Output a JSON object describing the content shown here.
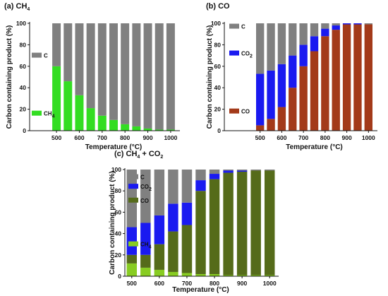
{
  "chart_data": [
    {
      "id": "a",
      "type": "bar",
      "stacked": true,
      "title": "(a) CH",
      "title_sub": "4",
      "xlabel": "Temperature (°C)",
      "ylabel": "Carbon containing product (%)",
      "ylim": [
        0,
        100
      ],
      "yticks": [
        0,
        20,
        40,
        60,
        80,
        100
      ],
      "categories": [
        "500",
        "550",
        "600",
        "650",
        "700",
        "750",
        "800",
        "850",
        "900",
        "950",
        "1000"
      ],
      "tick_labels": [
        "500",
        "600",
        "700",
        "800",
        "900",
        "1000"
      ],
      "series": [
        {
          "name": "CH",
          "name_sub": "4",
          "color": "#33dd22",
          "values": [
            60,
            46,
            33,
            21,
            14,
            10,
            6,
            4,
            2,
            1,
            1
          ]
        },
        {
          "name": "C",
          "name_sub": "",
          "color": "#808080",
          "values": [
            40,
            54,
            67,
            79,
            86,
            90,
            94,
            96,
            98,
            99,
            99
          ]
        }
      ]
    },
    {
      "id": "b",
      "type": "bar",
      "stacked": true,
      "title": "(b) CO",
      "title_sub": "",
      "xlabel": "Temperature (°C)",
      "ylabel": "Carbon containing product (%)",
      "ylim": [
        0,
        100
      ],
      "yticks": [
        0,
        20,
        40,
        60,
        80,
        100
      ],
      "categories": [
        "500",
        "550",
        "600",
        "650",
        "700",
        "750",
        "800",
        "850",
        "900",
        "950",
        "1000"
      ],
      "tick_labels": [
        "500",
        "600",
        "700",
        "800",
        "900",
        "1000"
      ],
      "series": [
        {
          "name": "CO",
          "name_sub": "",
          "color": "#a33a1a",
          "values": [
            5,
            11,
            22,
            40,
            60,
            74,
            88,
            94,
            99,
            99,
            99
          ]
        },
        {
          "name": "CO",
          "name_sub": "2",
          "color": "#1a1af0",
          "values": [
            48,
            45,
            40,
            30,
            20,
            14,
            7,
            4,
            1,
            1,
            0
          ]
        },
        {
          "name": "C",
          "name_sub": "",
          "color": "#808080",
          "values": [
            47,
            44,
            38,
            30,
            20,
            12,
            5,
            2,
            0,
            0,
            1
          ]
        }
      ]
    },
    {
      "id": "c",
      "type": "bar",
      "stacked": true,
      "title": "(c) CH",
      "title_sub": "4",
      "title_tail": " + CO",
      "title_tail_sub": "2",
      "xlabel": "Temperature (°C)",
      "ylabel": "Carbon containing product (%)",
      "ylim": [
        0,
        100
      ],
      "yticks": [
        0,
        20,
        40,
        60,
        80,
        100
      ],
      "categories": [
        "500",
        "550",
        "600",
        "650",
        "700",
        "750",
        "800",
        "850",
        "900",
        "950",
        "1000"
      ],
      "tick_labels": [
        "500",
        "600",
        "700",
        "800",
        "900",
        "1000"
      ],
      "series": [
        {
          "name": "CH",
          "name_sub": "4",
          "color": "#88cc22",
          "values": [
            12,
            8,
            6,
            4,
            3,
            2,
            2,
            1,
            1,
            1,
            1
          ]
        },
        {
          "name": "CO",
          "name_sub": "",
          "color": "#556b1a",
          "values": [
            8,
            12,
            24,
            38,
            45,
            78,
            89,
            96,
            97,
            98,
            98
          ]
        },
        {
          "name": "CO",
          "name_sub": "2",
          "color": "#1a1af0",
          "values": [
            26,
            30,
            27,
            26,
            21,
            10,
            5,
            2,
            1,
            0,
            0
          ]
        },
        {
          "name": "C",
          "name_sub": "",
          "color": "#808080",
          "values": [
            54,
            50,
            43,
            32,
            31,
            10,
            4,
            1,
            1,
            1,
            1
          ]
        }
      ]
    }
  ]
}
